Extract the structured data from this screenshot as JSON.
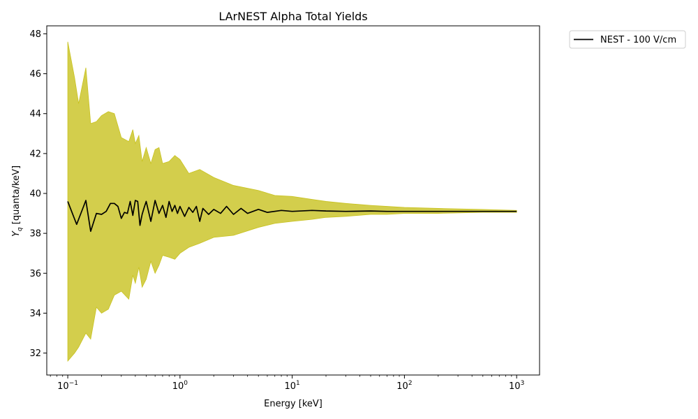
{
  "chart_data": {
    "type": "line",
    "title": "LArNEST Alpha Total Yields",
    "xlabel": "Energy [keV]",
    "ylabel_main": "Y",
    "ylabel_sub": "q",
    "ylabel_rest": " [quanta/keV]",
    "x_scale": "log",
    "xlim": [
      0.065,
      1600
    ],
    "ylim": [
      30.9,
      48.4
    ],
    "grid": false,
    "legend_position": "outside-top-right",
    "x_ticks": [
      {
        "value": 0.1,
        "base": "10",
        "exp": "−1"
      },
      {
        "value": 1,
        "base": "10",
        "exp": "0"
      },
      {
        "value": 10,
        "base": "10",
        "exp": "1"
      },
      {
        "value": 100,
        "base": "10",
        "exp": "2"
      },
      {
        "value": 1000,
        "base": "10",
        "exp": "3"
      }
    ],
    "y_ticks": [
      32,
      34,
      36,
      38,
      40,
      42,
      44,
      46,
      48
    ],
    "series": [
      {
        "name": "NEST - 100 V/cm",
        "color": "#000000",
        "x": [
          0.1,
          0.12,
          0.145,
          0.16,
          0.18,
          0.2,
          0.22,
          0.24,
          0.26,
          0.28,
          0.3,
          0.32,
          0.34,
          0.36,
          0.38,
          0.4,
          0.42,
          0.44,
          0.46,
          0.48,
          0.5,
          0.55,
          0.6,
          0.65,
          0.7,
          0.75,
          0.8,
          0.85,
          0.9,
          0.95,
          1.0,
          1.1,
          1.2,
          1.3,
          1.4,
          1.5,
          1.6,
          1.8,
          2.0,
          2.3,
          2.6,
          3.0,
          3.5,
          4.0,
          5,
          6,
          8,
          10,
          15,
          20,
          30,
          50,
          70,
          100,
          200,
          300,
          500,
          700,
          1000
        ],
        "values": [
          39.6,
          38.45,
          39.65,
          38.1,
          39.0,
          38.95,
          39.1,
          39.5,
          39.5,
          39.35,
          38.75,
          39.05,
          39.0,
          39.6,
          38.9,
          39.65,
          39.6,
          38.4,
          38.95,
          39.3,
          39.6,
          38.6,
          39.65,
          39.0,
          39.4,
          38.8,
          39.6,
          39.1,
          39.4,
          39.0,
          39.35,
          38.85,
          39.3,
          39.05,
          39.35,
          38.6,
          39.25,
          38.95,
          39.2,
          39.0,
          39.35,
          38.95,
          39.25,
          39.0,
          39.2,
          39.05,
          39.15,
          39.1,
          39.15,
          39.12,
          39.1,
          39.12,
          39.1,
          39.1,
          39.1,
          39.1,
          39.1,
          39.1,
          39.1
        ]
      }
    ],
    "band": {
      "color": "#c8c21f",
      "x": [
        0.1,
        0.115,
        0.125,
        0.145,
        0.16,
        0.18,
        0.2,
        0.23,
        0.26,
        0.3,
        0.35,
        0.38,
        0.4,
        0.43,
        0.46,
        0.5,
        0.55,
        0.6,
        0.65,
        0.7,
        0.8,
        0.9,
        1.0,
        1.2,
        1.5,
        2.0,
        3.0,
        5,
        7,
        10,
        15,
        20,
        30,
        50,
        70,
        100,
        200,
        500,
        1000
      ],
      "upper": [
        47.6,
        45.8,
        44.5,
        46.3,
        43.5,
        43.6,
        43.9,
        44.1,
        44.0,
        42.8,
        42.6,
        43.2,
        42.5,
        42.9,
        41.6,
        42.3,
        41.5,
        42.2,
        42.3,
        41.5,
        41.6,
        41.9,
        41.7,
        41.0,
        41.2,
        40.8,
        40.4,
        40.15,
        39.9,
        39.85,
        39.7,
        39.6,
        39.5,
        39.4,
        39.35,
        39.3,
        39.25,
        39.2,
        39.15
      ],
      "lower": [
        31.6,
        32.0,
        32.3,
        33.0,
        32.7,
        34.3,
        34.0,
        34.2,
        34.9,
        35.1,
        34.7,
        35.9,
        35.5,
        36.3,
        35.3,
        35.7,
        36.6,
        36.0,
        36.4,
        36.9,
        36.8,
        36.7,
        37.0,
        37.3,
        37.5,
        37.8,
        37.9,
        38.3,
        38.5,
        38.6,
        38.7,
        38.8,
        38.85,
        38.95,
        38.95,
        39.0,
        39.0,
        39.05,
        39.05
      ]
    }
  }
}
